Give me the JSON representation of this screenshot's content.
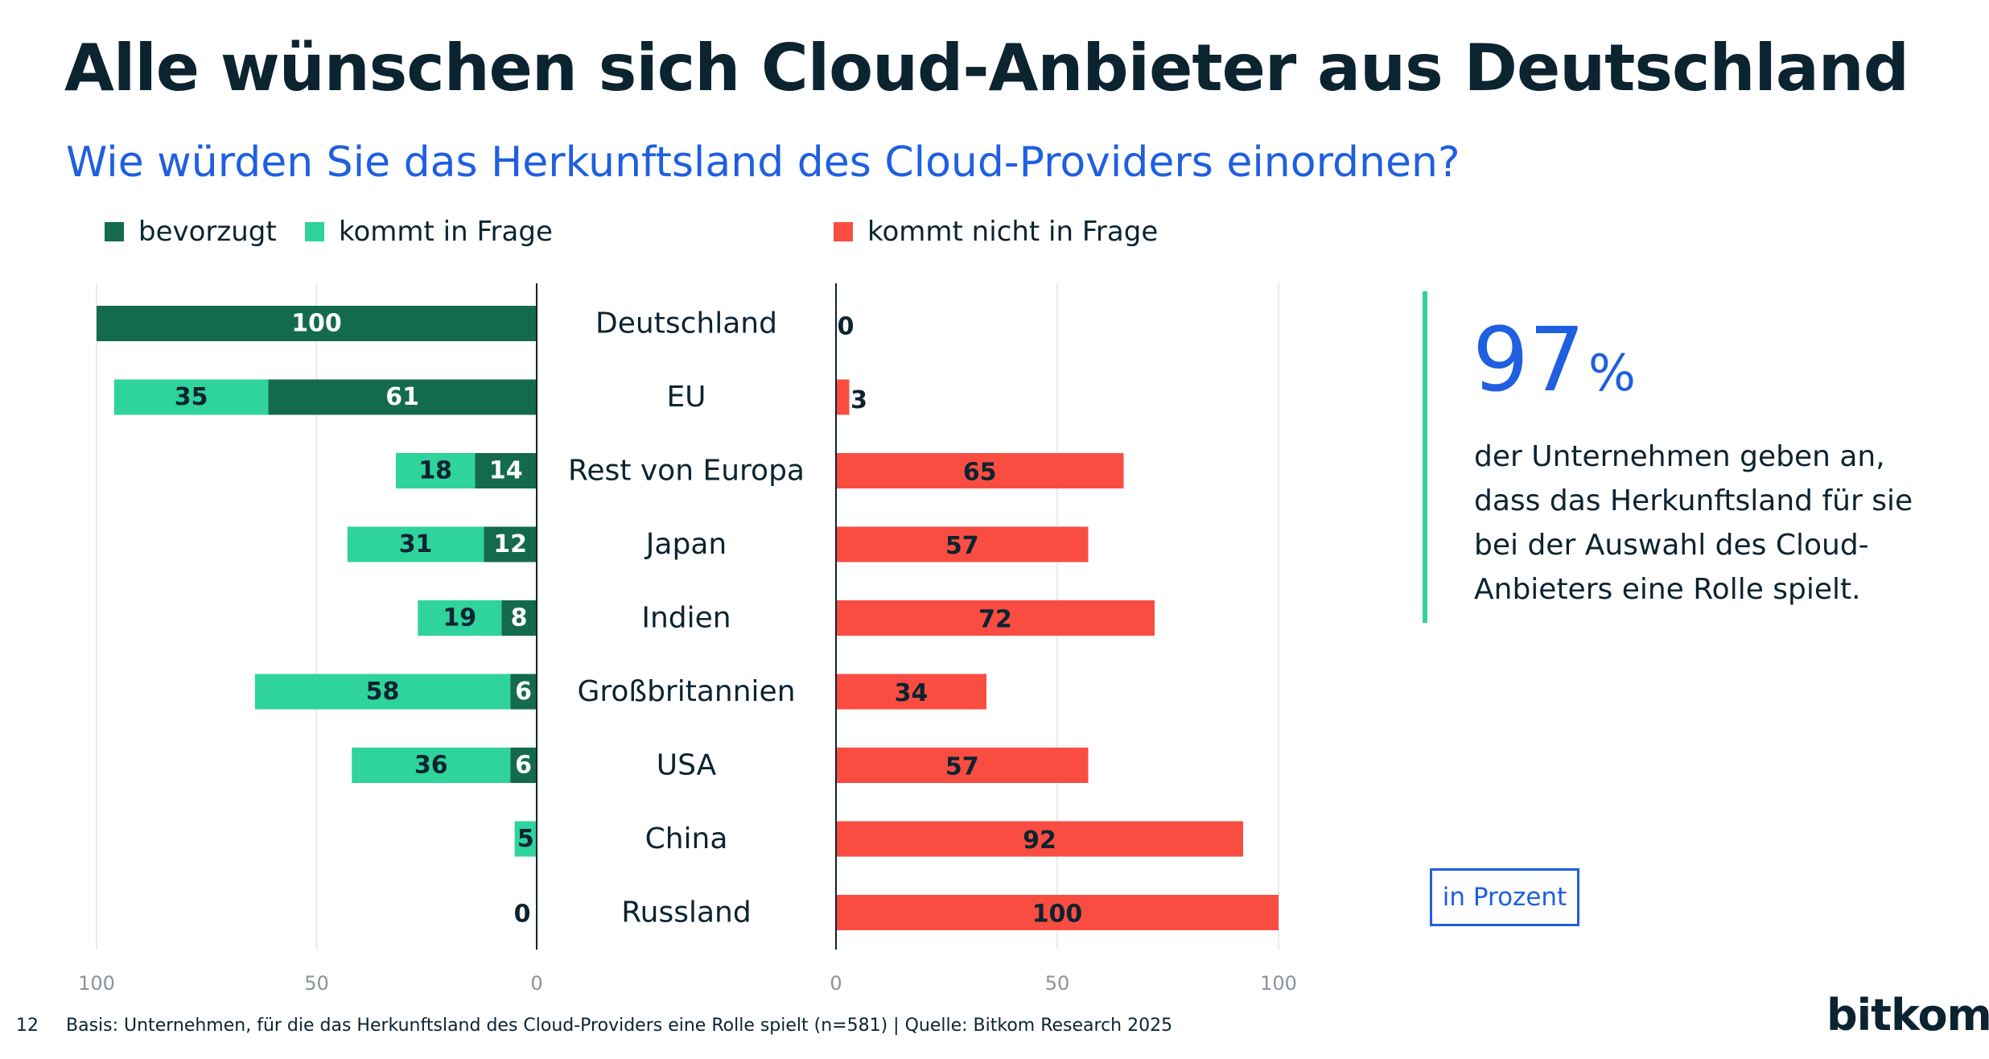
{
  "header": {
    "title": "Alle wünschen sich Cloud-Anbieter aus Deutschland",
    "subtitle": "Wie würden Sie das Herkunftsland des Cloud-Providers einordnen?"
  },
  "legend": {
    "preferred": "bevorzugt",
    "possible": "kommt in Frage",
    "not_possible": "kommt nicht in Frage"
  },
  "colors": {
    "preferred": "#136b4c",
    "possible": "#2fd39c",
    "not_possible": "#fa4d42",
    "accent": "#1f5fe0",
    "text": "#0c2330"
  },
  "chart_data": {
    "type": "bar",
    "orientation": "horizontal",
    "categories": [
      "Deutschland",
      "EU",
      "Rest von Europa",
      "Japan",
      "Indien",
      "Großbritannien",
      "USA",
      "China",
      "Russland"
    ],
    "left_panel": {
      "xlim": [
        100,
        0
      ],
      "ticks": [
        "100",
        "50",
        "0"
      ],
      "series": [
        {
          "name": "bevorzugt",
          "values": [
            100,
            61,
            14,
            12,
            8,
            6,
            6,
            0,
            0
          ]
        },
        {
          "name": "kommt in Frage",
          "values": [
            0,
            35,
            18,
            31,
            19,
            58,
            36,
            5,
            0
          ]
        }
      ]
    },
    "right_panel": {
      "xlim": [
        0,
        100
      ],
      "ticks": [
        "0",
        "50",
        "100"
      ],
      "series": [
        {
          "name": "kommt nicht in Frage",
          "values": [
            0,
            3,
            65,
            57,
            72,
            34,
            57,
            92,
            100
          ]
        }
      ]
    },
    "grid": true,
    "legend_position": "top"
  },
  "callout": {
    "number": "97",
    "unit": "%",
    "text": "der Unternehmen geben an, dass das Herkunftsland für sie bei der Auswahl des Cloud-Anbieters eine Rolle spielt."
  },
  "unit_label": "in Prozent",
  "footer": {
    "page_number": "12",
    "note": "Basis: Unternehmen, für die das Herkunftsland des Cloud-Providers eine Rolle spielt (n=581) | Quelle: Bitkom Research 2025",
    "logo": "bitkom"
  }
}
